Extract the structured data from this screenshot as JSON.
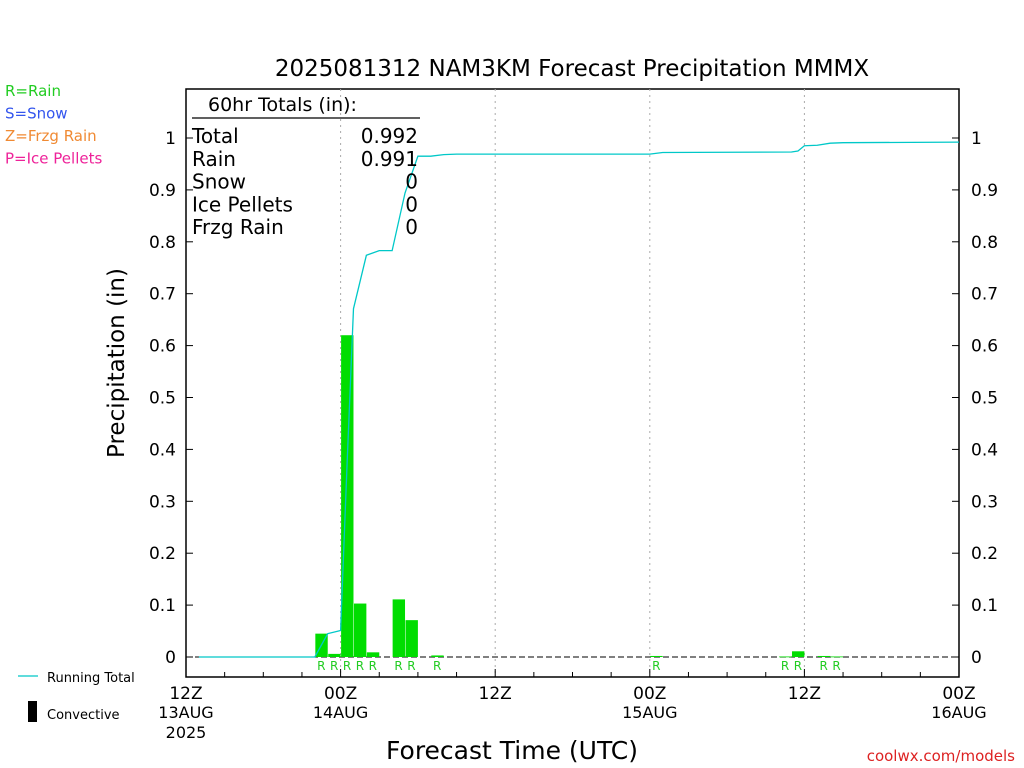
{
  "chart_data": {
    "type": "bar",
    "title": "2025081312 NAM3KM Forecast Precipitation MMMX",
    "xlabel": "Forecast Time (UTC)",
    "ylabel": "Precipitation (in)",
    "ylim": [
      0,
      1.0
    ],
    "xlim_hours": [
      0,
      60
    ],
    "y_ticks": [
      "0",
      "0.1",
      "0.2",
      "0.3",
      "0.4",
      "0.5",
      "0.6",
      "0.7",
      "0.8",
      "0.9",
      "1"
    ],
    "y_tick_values": [
      0,
      0.1,
      0.2,
      0.3,
      0.4,
      0.5,
      0.6,
      0.7,
      0.8,
      0.9,
      1.0
    ],
    "x_ticks": [
      {
        "hour": 0,
        "time": "12Z",
        "date": "13AUG",
        "year": "2025"
      },
      {
        "hour": 12,
        "time": "00Z",
        "date": "14AUG",
        "year": ""
      },
      {
        "hour": 24,
        "time": "12Z",
        "date": "",
        "year": ""
      },
      {
        "hour": 36,
        "time": "00Z",
        "date": "15AUG",
        "year": ""
      },
      {
        "hour": 48,
        "time": "12Z",
        "date": "",
        "year": ""
      },
      {
        "hour": 60,
        "time": "00Z",
        "date": "16AUG",
        "year": ""
      }
    ],
    "grid_hours": [
      12,
      24,
      36,
      48
    ],
    "series": [
      {
        "name": "Convective",
        "type": "bar",
        "color": "#00dd00",
        "bars": [
          {
            "hour": 11,
            "value": 0.045,
            "ptype": "R"
          },
          {
            "hour": 12,
            "value": 0.006,
            "ptype": "R"
          },
          {
            "hour": 13,
            "value": 0.62,
            "ptype": "R"
          },
          {
            "hour": 14,
            "value": 0.103,
            "ptype": "R"
          },
          {
            "hour": 15,
            "value": 0.009,
            "ptype": "R"
          },
          {
            "hour": 17,
            "value": 0.111,
            "ptype": "R"
          },
          {
            "hour": 18,
            "value": 0.071,
            "ptype": "R"
          },
          {
            "hour": 20,
            "value": 0.003,
            "ptype": "R"
          },
          {
            "hour": 37,
            "value": 0.002,
            "ptype": "R"
          },
          {
            "hour": 47,
            "value": 0.001,
            "ptype": "R"
          },
          {
            "hour": 48,
            "value": 0.011,
            "ptype": "R"
          },
          {
            "hour": 50,
            "value": 0.002,
            "ptype": "R"
          },
          {
            "hour": 51,
            "value": 0.001,
            "ptype": "R"
          }
        ]
      },
      {
        "name": "Running Total",
        "type": "line",
        "color": "#00c8c8",
        "points": [
          [
            1,
            0
          ],
          [
            10,
            0
          ],
          [
            11,
            0.045
          ],
          [
            12,
            0.051
          ],
          [
            12.5,
            0.37
          ],
          [
            13,
            0.671
          ],
          [
            14,
            0.774
          ],
          [
            15,
            0.783
          ],
          [
            16,
            0.783
          ],
          [
            17,
            0.894
          ],
          [
            18,
            0.965
          ],
          [
            19,
            0.965
          ],
          [
            20,
            0.968
          ],
          [
            21,
            0.969
          ],
          [
            36,
            0.969
          ],
          [
            37,
            0.972
          ],
          [
            47,
            0.973
          ],
          [
            47.5,
            0.975
          ],
          [
            48,
            0.985
          ],
          [
            49,
            0.986
          ],
          [
            50,
            0.99
          ],
          [
            51,
            0.991
          ],
          [
            60,
            0.992
          ]
        ]
      }
    ],
    "totals": {
      "header": "60hr Totals (in):",
      "rows": [
        {
          "label": "Total",
          "value": "0.992"
        },
        {
          "label": "Rain",
          "value": "0.991"
        },
        {
          "label": "Snow",
          "value": "0"
        },
        {
          "label": "Ice Pellets",
          "value": "0"
        },
        {
          "label": "Frzg Rain",
          "value": "0"
        }
      ]
    },
    "ptype_legend": [
      {
        "label": "R=Rain",
        "color": "#22cc22"
      },
      {
        "label": "S=Snow",
        "color": "#3355ee"
      },
      {
        "label": "Z=Frzg Rain",
        "color": "#f08a33"
      },
      {
        "label": "P=Ice Pellets",
        "color": "#ee2299"
      }
    ],
    "bottom_legend": [
      {
        "label": "Running Total",
        "color": "#00c8c8"
      },
      {
        "label": "Convective",
        "color": "#000000"
      }
    ],
    "credit": {
      "text": "coolwx.com/models",
      "color": "#dd2222"
    }
  }
}
